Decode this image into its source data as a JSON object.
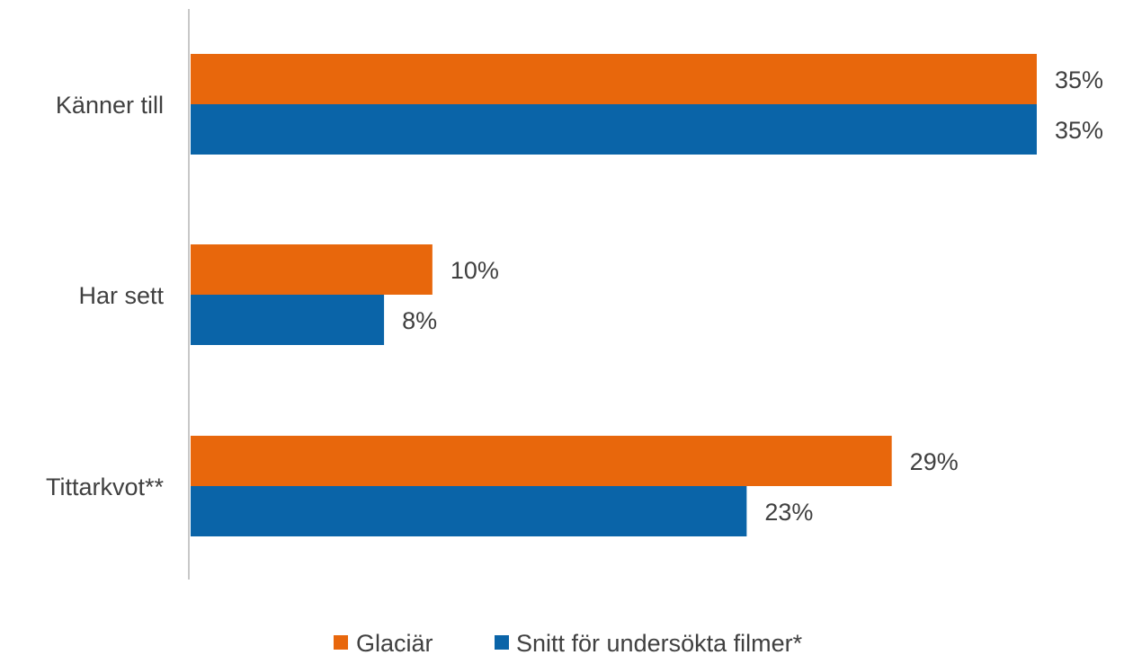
{
  "chart_data": {
    "type": "bar",
    "orientation": "horizontal",
    "categories": [
      "Känner till",
      "Har sett",
      "Tittarkvot**"
    ],
    "series": [
      {
        "name": "Glaciär",
        "color": "#E8670C",
        "values": [
          35,
          10,
          29
        ],
        "labels": [
          "35%",
          "10%",
          "29%"
        ]
      },
      {
        "name": "Snitt för undersökta filmer*",
        "color": "#0A64A8",
        "values": [
          35,
          8,
          23
        ],
        "labels": [
          "35%",
          "8%",
          "23%"
        ]
      }
    ],
    "xlim": [
      0,
      35
    ],
    "grid": false,
    "legend": "bottom",
    "title": "",
    "xlabel": "",
    "ylabel": ""
  }
}
